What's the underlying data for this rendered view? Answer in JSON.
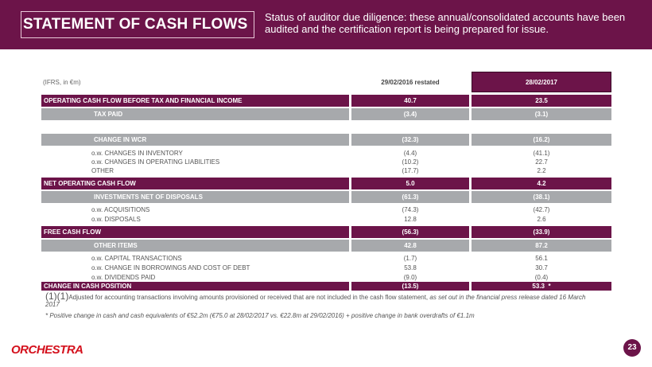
{
  "header": {
    "title": "STATEMENT OF CASH FLOWS",
    "status": "Status of auditor due diligence: these annual/consolidated accounts have been audited and the certification report is being prepared for issue."
  },
  "table": {
    "units_label": "(IFRS,  in €m)",
    "col1": "29/02/2016  restated",
    "col2": "28/02/2017",
    "rows": {
      "ocf": {
        "label": "OPERATING CASH FLOW BEFORE TAX AND FINANCIAL INCOME",
        "v1": "40.7",
        "v2": "23.5"
      },
      "tax": {
        "label": "TAX PAID",
        "v1": "(3.4)",
        "v2": "(3.1)"
      },
      "wcr": {
        "label": "CHANGE  IN WCR",
        "v1": "(32.3)",
        "v2": "(16.2)"
      },
      "wcr_sub": [
        {
          "label": "o.w. CHANGES IN INVENTORY",
          "v1": "(4.4)",
          "v2": "(41.1)"
        },
        {
          "label": "o.w.  CHANGES IN OPERATING LIABILITIES",
          "v1": "(10.2)",
          "v2": "22.7"
        },
        {
          "label": "OTHER",
          "v1": "(17.7)",
          "v2": "2.2"
        }
      ],
      "nocf": {
        "label": "NET OPERATING CASH FLOW",
        "v1": "5.0",
        "v2": "4.2"
      },
      "inv": {
        "label": "INVESTMENTS NET OF DISPOSALS",
        "v1": "(61.3)",
        "v2": "(38.1)"
      },
      "inv_sub": [
        {
          "label": "o.w. ACQUISITIONS",
          "v1": "(74.3)",
          "v2": "(42.7)"
        },
        {
          "label": "o.w. DISPOSALS",
          "v1": "12.8",
          "v2": "2.6"
        }
      ],
      "fcf": {
        "label": "FREE CASH FLOW",
        "v1": "(56.3)",
        "v2": "(33.9)"
      },
      "other": {
        "label": "OTHER ITEMS",
        "v1": "42.8",
        "v2": "87.2"
      },
      "other_sub": [
        {
          "label": "o.w. CAPITAL TRANSACTIONS",
          "v1": "(1.7)",
          "v2": "56.1"
        },
        {
          "label": "o.w. CHANGE IN BORROWINGS AND COST OF DEBT",
          "v1": "53.8",
          "v2": "30.7"
        },
        {
          "label": "o.w. DIVIDENDS PAID",
          "v1": "(9.0)",
          "v2": "(0.4)"
        }
      ],
      "cash": {
        "label": "CHANGE  IN CASH POSITION",
        "v1": "(13.5)",
        "v2": "53.3",
        "mark": "*"
      }
    }
  },
  "footnotes": {
    "mark": "(1)(1)",
    "note1_text": "Adjusted for accounting transactions involving amounts provisioned or received that are not included in the cash flow statement, ",
    "note1_italic": "as set out in the financial press release dated 16 March 2017",
    "note2": "* Positive change in cash and cash equivalents of €52.2m (€75.0 at 28/02/2017 vs. €22.8m at 29/02/2016) + positive change in bank overdrafts of €1.1m"
  },
  "footer": {
    "logo": "ORCHESTRA",
    "page": "23"
  }
}
